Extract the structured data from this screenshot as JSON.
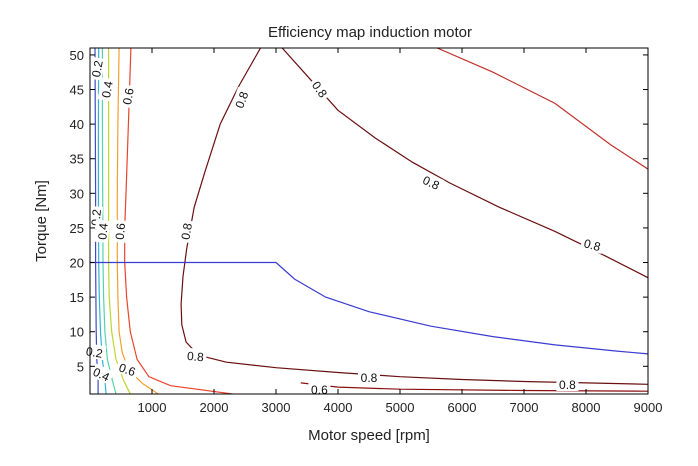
{
  "chart_data": {
    "type": "contour",
    "title": "Efficiency map induction motor",
    "xlabel": "Motor speed [rpm]",
    "ylabel": "Torque [Nm]",
    "xlim": [
      0,
      9000
    ],
    "ylim": [
      1,
      51
    ],
    "xticks": [
      1000,
      2000,
      3000,
      4000,
      5000,
      6000,
      7000,
      8000,
      9000
    ],
    "yticks": [
      5,
      10,
      15,
      20,
      25,
      30,
      35,
      40,
      45,
      50
    ],
    "grid": false,
    "frame_color": "#000000",
    "contours": [
      {
        "level": "0.2",
        "color": "#3b4cc0",
        "points": [
          [
            130,
            1
          ],
          [
            130,
            3
          ],
          [
            110,
            6
          ],
          [
            100,
            10
          ],
          [
            90,
            20
          ],
          [
            90,
            30
          ],
          [
            85,
            40
          ],
          [
            80,
            51
          ]
        ]
      },
      {
        "level": "0.2",
        "color": "#2fb5d8",
        "points": [
          [
            260,
            1
          ],
          [
            240,
            3
          ],
          [
            200,
            6
          ],
          [
            170,
            10
          ],
          [
            150,
            15
          ],
          [
            140,
            20
          ],
          [
            135,
            30
          ],
          [
            135,
            40
          ],
          [
            140,
            51
          ]
        ]
      },
      {
        "level": "0.4",
        "color": "#56d3a8",
        "points": [
          [
            420,
            1
          ],
          [
            360,
            3
          ],
          [
            280,
            6
          ],
          [
            240,
            10
          ],
          [
            220,
            15
          ],
          [
            210,
            20
          ],
          [
            205,
            30
          ],
          [
            200,
            40
          ],
          [
            200,
            51
          ]
        ]
      },
      {
        "level": "0.4",
        "color": "#bfd52c",
        "points": [
          [
            650,
            1
          ],
          [
            540,
            3
          ],
          [
            420,
            6
          ],
          [
            350,
            10
          ],
          [
            310,
            15
          ],
          [
            300,
            20
          ],
          [
            300,
            30
          ],
          [
            300,
            40
          ],
          [
            300,
            51
          ]
        ]
      },
      {
        "level": "0.6",
        "color": "#f0a030",
        "points": [
          [
            1100,
            1
          ],
          [
            850,
            2.5
          ],
          [
            620,
            4.5
          ],
          [
            520,
            7
          ],
          [
            470,
            10
          ],
          [
            450,
            15
          ],
          [
            440,
            20
          ],
          [
            440,
            30
          ],
          [
            450,
            40
          ],
          [
            470,
            51
          ]
        ]
      },
      {
        "level": "0.6",
        "color": "#e8452c",
        "points": [
          [
            2300,
            1
          ],
          [
            1300,
            2.2
          ],
          [
            950,
            3.5
          ],
          [
            760,
            6
          ],
          [
            650,
            10
          ],
          [
            590,
            15
          ],
          [
            560,
            20
          ],
          [
            560,
            25
          ],
          [
            580,
            30
          ],
          [
            620,
            40
          ],
          [
            660,
            51
          ]
        ]
      },
      {
        "level": "0.8",
        "color": "#6a0f0f",
        "points": [
          [
            9000,
            2.4
          ],
          [
            8000,
            2.6
          ],
          [
            7000,
            2.8
          ],
          [
            6000,
            3.1
          ],
          [
            5000,
            3.5
          ],
          [
            4000,
            4.1
          ],
          [
            3000,
            4.8
          ],
          [
            2200,
            5.6
          ],
          [
            1750,
            6.6
          ],
          [
            1550,
            8.5
          ],
          [
            1480,
            11
          ],
          [
            1470,
            14
          ],
          [
            1500,
            18
          ],
          [
            1560,
            22
          ],
          [
            1680,
            28
          ],
          [
            1850,
            33
          ],
          [
            2100,
            40
          ],
          [
            2400,
            45.5
          ],
          [
            2750,
            51
          ]
        ]
      },
      {
        "level": "0.8",
        "color": "#6a0f0f",
        "points": [
          [
            3100,
            51
          ],
          [
            3500,
            47
          ],
          [
            4000,
            42
          ],
          [
            4600,
            38
          ],
          [
            5200,
            34.5
          ],
          [
            5800,
            31.5
          ],
          [
            6600,
            28
          ],
          [
            7500,
            24.5
          ],
          [
            8300,
            21
          ],
          [
            9000,
            17.8
          ]
        ]
      },
      {
        "level": "0.8",
        "color": "#8a1010",
        "points": [
          [
            9000,
            1.4
          ],
          [
            7000,
            1.5
          ],
          [
            5000,
            1.7
          ],
          [
            4000,
            2.0
          ],
          [
            3400,
            2.6
          ]
        ]
      },
      {
        "level": "",
        "color": "#c0302a",
        "points": [
          [
            5600,
            51
          ],
          [
            6500,
            47.5
          ],
          [
            7500,
            43
          ],
          [
            8400,
            37
          ],
          [
            9000,
            33.5
          ]
        ]
      }
    ],
    "series": [
      {
        "name": "",
        "color": "#3b3bd0",
        "x": [
          0,
          3000,
          3300,
          3800,
          4500,
          5500,
          6500,
          7500,
          8500,
          9000
        ],
        "y": [
          20,
          20,
          17.6,
          15.0,
          12.9,
          10.8,
          9.3,
          8.1,
          7.2,
          6.8
        ]
      }
    ],
    "contour_labels": [
      {
        "text": "0.2",
        "x": 120,
        "y": 48,
        "angle": -80
      },
      {
        "text": "0.4",
        "x": 280,
        "y": 45,
        "angle": -80
      },
      {
        "text": "0.6",
        "x": 620,
        "y": 44,
        "angle": -80
      },
      {
        "text": "0.8",
        "x": 2450,
        "y": 43.5,
        "angle": -70
      },
      {
        "text": "0.8",
        "x": 3700,
        "y": 45,
        "angle": 55
      },
      {
        "text": "0.2",
        "x": 100,
        "y": 26.5,
        "angle": -85
      },
      {
        "text": "0.4",
        "x": 210,
        "y": 24.5,
        "angle": -85
      },
      {
        "text": "0.6",
        "x": 490,
        "y": 24.5,
        "angle": -85
      },
      {
        "text": "0.8",
        "x": 1560,
        "y": 24.5,
        "angle": -80
      },
      {
        "text": "0.8",
        "x": 5500,
        "y": 31.5,
        "angle": 25
      },
      {
        "text": "0.8",
        "x": 8100,
        "y": 22.5,
        "angle": 15
      },
      {
        "text": "0.8",
        "x": 1700,
        "y": 6.4,
        "angle": 5
      },
      {
        "text": "0.8",
        "x": 4500,
        "y": 3.3,
        "angle": 0
      },
      {
        "text": "0.8",
        "x": 7700,
        "y": 2.3,
        "angle": 0
      },
      {
        "text": "0.6",
        "x": 600,
        "y": 4.5,
        "angle": 20
      },
      {
        "text": "0.6",
        "x": 3700,
        "y": 1.6,
        "angle": 0
      },
      {
        "text": "0.2",
        "x": 70,
        "y": 7,
        "angle": 10
      },
      {
        "text": "0.4",
        "x": 180,
        "y": 3.8,
        "angle": 25
      }
    ]
  }
}
